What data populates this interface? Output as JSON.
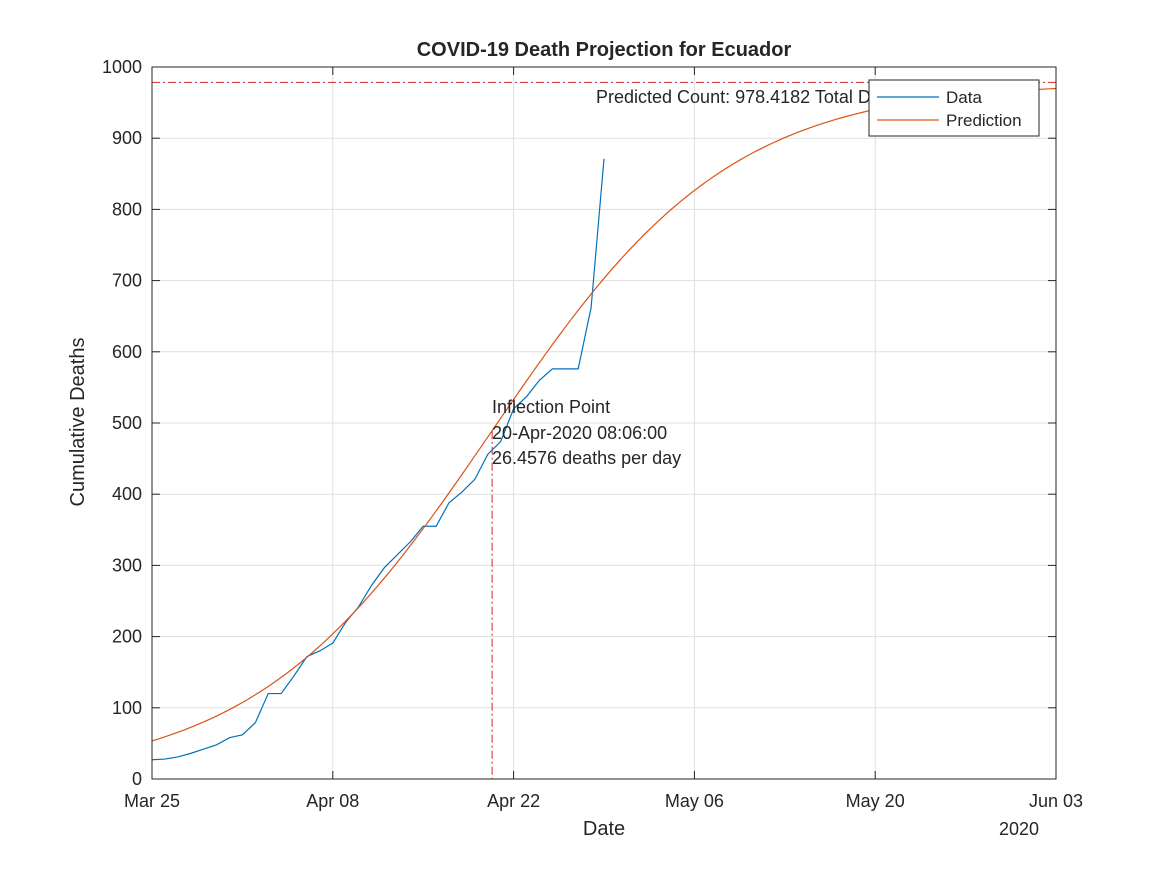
{
  "chart_data": {
    "type": "line",
    "title": "COVID-19 Death Projection for Ecuador",
    "xlabel": "Date",
    "ylabel": "Cumulative Deaths",
    "x_year_label": "2020",
    "xlim": [
      "2020-03-25",
      "2020-06-03"
    ],
    "ylim": [
      0,
      1000
    ],
    "x_ticks": [
      {
        "date": "2020-03-25",
        "label": "Mar 25"
      },
      {
        "date": "2020-04-08",
        "label": "Apr 08"
      },
      {
        "date": "2020-04-22",
        "label": "Apr 22"
      },
      {
        "date": "2020-05-06",
        "label": "May 06"
      },
      {
        "date": "2020-05-20",
        "label": "May 20"
      },
      {
        "date": "2020-06-03",
        "label": "Jun 03"
      }
    ],
    "y_ticks": [
      0,
      100,
      200,
      300,
      400,
      500,
      600,
      700,
      800,
      900,
      1000
    ],
    "grid": true,
    "legend_position": "top-right",
    "series": [
      {
        "name": "Data",
        "color": "#0072bd",
        "points": [
          [
            "2020-03-25",
            27
          ],
          [
            "2020-03-26",
            28
          ],
          [
            "2020-03-27",
            31
          ],
          [
            "2020-03-28",
            36
          ],
          [
            "2020-03-29",
            42
          ],
          [
            "2020-03-30",
            48
          ],
          [
            "2020-03-31",
            58
          ],
          [
            "2020-04-01",
            62
          ],
          [
            "2020-04-02",
            79
          ],
          [
            "2020-04-03",
            120
          ],
          [
            "2020-04-04",
            120
          ],
          [
            "2020-04-05",
            145
          ],
          [
            "2020-04-06",
            172
          ],
          [
            "2020-04-07",
            180
          ],
          [
            "2020-04-08",
            191
          ],
          [
            "2020-04-09",
            220
          ],
          [
            "2020-04-10",
            242
          ],
          [
            "2020-04-11",
            272
          ],
          [
            "2020-04-12",
            297
          ],
          [
            "2020-04-13",
            315
          ],
          [
            "2020-04-14",
            333
          ],
          [
            "2020-04-15",
            355
          ],
          [
            "2020-04-16",
            355
          ],
          [
            "2020-04-17",
            388
          ],
          [
            "2020-04-18",
            403
          ],
          [
            "2020-04-19",
            421
          ],
          [
            "2020-04-20",
            456
          ],
          [
            "2020-04-21",
            474
          ],
          [
            "2020-04-22",
            520
          ],
          [
            "2020-04-23",
            537
          ],
          [
            "2020-04-24",
            560
          ],
          [
            "2020-04-25",
            576
          ],
          [
            "2020-04-26",
            576
          ],
          [
            "2020-04-27",
            576
          ],
          [
            "2020-04-28",
            662
          ],
          [
            "2020-04-29",
            871
          ]
        ]
      },
      {
        "name": "Prediction",
        "color": "#d95319",
        "logistic": {
          "K": 978.4182,
          "rate_per_day": 0.1082,
          "midpoint": "2020-04-20T08:06:00"
        }
      }
    ],
    "annotations": {
      "asymptote_value": 978.4182,
      "asymptote_label": "Predicted Count: 978.4182 Total Deaths",
      "asymptote_color": "#d62728",
      "inflection": {
        "date": "2020-04-20T08:06:00",
        "value": 489.2,
        "lines": [
          "Inflection Point",
          "20-Apr-2020 08:06:00",
          "26.4576 deaths per day"
        ]
      }
    }
  }
}
